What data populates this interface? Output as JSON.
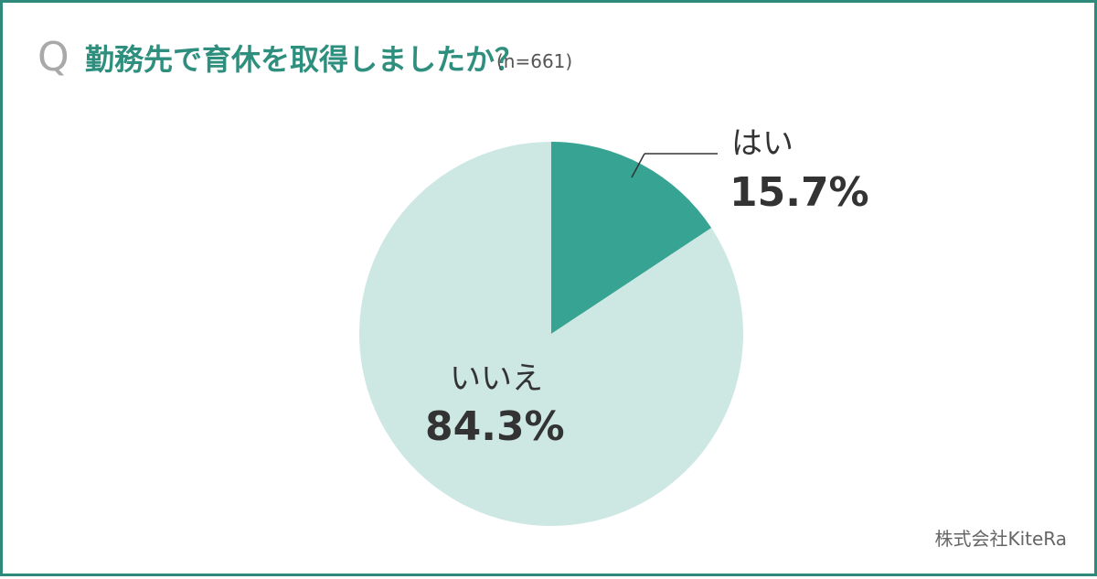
{
  "header": {
    "q_mark": "Q",
    "title": "勤務先で育休を取得しましたか？",
    "sample_size": "(n=661)"
  },
  "chart_data": {
    "type": "pie",
    "title": "勤務先で育休を取得しましたか？",
    "categories": [
      "はい",
      "いいえ"
    ],
    "values": [
      15.7,
      84.3
    ],
    "labels": [
      "15.7%",
      "84.3%"
    ],
    "colors": [
      "#36a393",
      "#cde8e3"
    ],
    "start_angle": "12 o'clock",
    "direction": "clockwise",
    "legend": "none (direct labels)"
  },
  "footer": {
    "credit": "株式会社KiteRa"
  },
  "colors": {
    "border": "#2e8b7b",
    "title": "#2f8f7e",
    "slice_yes": "#36a393",
    "slice_no": "#cde8e3"
  }
}
